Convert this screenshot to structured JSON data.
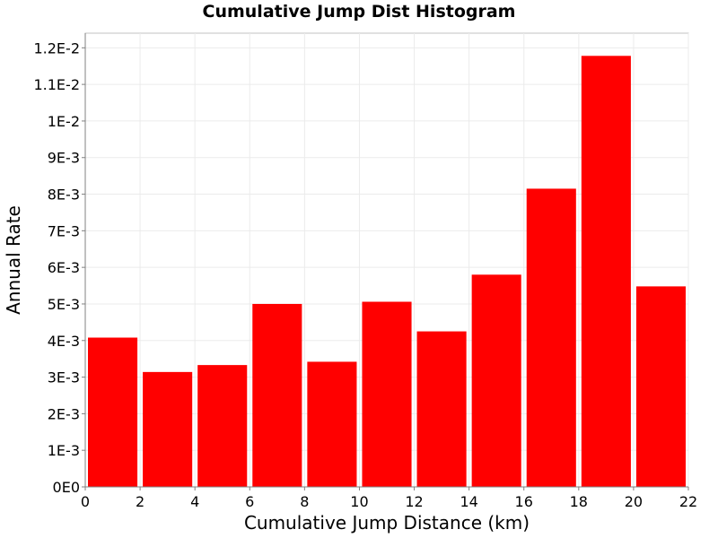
{
  "chart_data": {
    "type": "bar",
    "title": "Cumulative Jump Dist Histogram",
    "xlabel": "Cumulative Jump Distance (km)",
    "ylabel": "Annual Rate",
    "bin_edges": [
      0,
      2,
      4,
      6,
      8,
      10,
      12,
      14,
      16,
      18,
      20,
      22
    ],
    "categories": [
      "0-2",
      "2-4",
      "4-6",
      "6-8",
      "8-10",
      "10-12",
      "12-14",
      "14-16",
      "16-18",
      "18-20",
      "20-22"
    ],
    "values": [
      0.00408,
      0.00314,
      0.00333,
      0.005,
      0.00342,
      0.00506,
      0.00425,
      0.0058,
      0.00815,
      0.01178,
      0.00548
    ],
    "xlim": [
      0,
      22
    ],
    "ylim": [
      0,
      0.0124
    ],
    "xticks": [
      0,
      2,
      4,
      6,
      8,
      10,
      12,
      14,
      16,
      18,
      20,
      22
    ],
    "xtick_labels": [
      "0",
      "2",
      "4",
      "6",
      "8",
      "10",
      "12",
      "14",
      "16",
      "18",
      "20",
      "22"
    ],
    "yticks": [
      0,
      0.001,
      0.002,
      0.003,
      0.004,
      0.005,
      0.006,
      0.007,
      0.008,
      0.009,
      0.01,
      0.011,
      0.012
    ],
    "ytick_labels": [
      "0E0",
      "1E-3",
      "2E-3",
      "3E-3",
      "4E-3",
      "5E-3",
      "6E-3",
      "7E-3",
      "8E-3",
      "9E-3",
      "1E-2",
      "1.1E-2",
      "1.2E-2"
    ],
    "grid": true,
    "legend": "none",
    "bar_color": "#ff0000"
  }
}
